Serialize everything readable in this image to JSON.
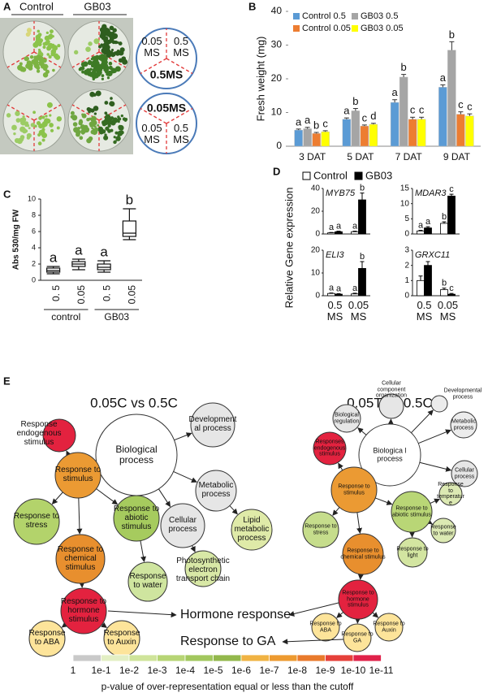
{
  "panel_labels": [
    "A",
    "B",
    "C",
    "D",
    "E"
  ],
  "photo_panel": {
    "labels": [
      "Control",
      "GB03"
    ],
    "circles": [
      {
        "labels": [
          "0.05 MS",
          "0.5 MS",
          "0.5MS"
        ]
      },
      {
        "labels": [
          "0.05MS",
          "0.05 MS",
          "0.5 MS"
        ]
      }
    ]
  },
  "chart_data": [
    {
      "type": "bar",
      "ylabel": "Fresh weight (mg)",
      "categories": [
        "3 DAT",
        "5 DAT",
        "7 DAT",
        "9 DAT"
      ],
      "ylim": [
        0,
        40
      ],
      "yticks": [
        0,
        10,
        20,
        30,
        40
      ],
      "legend": "upper-left",
      "series": [
        {
          "name": "Control 0.5",
          "color": "#5b9bd5",
          "values": [
            4.8,
            8,
            13,
            17.5
          ],
          "errors": [
            0.3,
            0.4,
            0.8,
            0.7
          ],
          "letters": [
            "a",
            "a",
            "a",
            "a"
          ]
        },
        {
          "name": "GB03 0.5",
          "color": "#a5a5a5",
          "values": [
            5.2,
            10.5,
            20.5,
            28.5
          ],
          "errors": [
            0.4,
            0.7,
            0.8,
            2.5
          ],
          "letters": [
            "a",
            "b",
            "b",
            "b"
          ]
        },
        {
          "name": "Control 0.05",
          "color": "#ed7d31",
          "values": [
            3.8,
            6,
            8,
            9.5
          ],
          "errors": [
            0.3,
            0.3,
            0.6,
            0.7
          ],
          "letters": [
            "b",
            "c",
            "c",
            "c"
          ]
        },
        {
          "name": "GB03 0.05",
          "color": "#ffff00",
          "values": [
            4.3,
            6.5,
            8,
            9
          ],
          "errors": [
            0.3,
            0.3,
            0.6,
            0.6
          ],
          "letters": [
            "c",
            "d",
            "c",
            "c"
          ]
        }
      ]
    },
    {
      "type": "box",
      "ylabel": "Abs 530/mg FW",
      "categories": [
        "0. 5",
        "0.05",
        "0. 5",
        "0.05"
      ],
      "groups": [
        "control",
        "GB03"
      ],
      "ylim": [
        0,
        10
      ],
      "yticks": [
        0,
        2,
        4,
        6,
        8,
        10
      ],
      "boxes": [
        {
          "min": 0.8,
          "q1": 1.0,
          "median": 1.2,
          "q3": 1.5,
          "max": 1.7
        },
        {
          "min": 1.3,
          "q1": 1.7,
          "median": 2.0,
          "q3": 2.3,
          "max": 2.6
        },
        {
          "min": 1.0,
          "q1": 1.3,
          "median": 1.6,
          "q3": 2.0,
          "max": 2.4
        },
        {
          "min": 5.0,
          "q1": 5.4,
          "median": 5.8,
          "q3": 7.3,
          "max": 8.8
        }
      ],
      "letters": [
        "a",
        "a",
        "a",
        "b"
      ]
    },
    {
      "type": "bar-panels",
      "ylabel": "Relative Gene expression",
      "categories": [
        "0.5 MS",
        "0.05 MS"
      ],
      "series": [
        {
          "name": "Control",
          "color": "#ffffff"
        },
        {
          "name": "GB03",
          "color": "#000000"
        }
      ],
      "panels": [
        {
          "title": "MYB75",
          "ylim": [
            0,
            40
          ],
          "yticks": [
            0,
            20,
            40
          ],
          "series": [
            {
              "values": [
                1,
                2
              ],
              "errors": [
                0.3,
                0.5
              ],
              "letters": [
                "a",
                "a"
              ]
            },
            {
              "values": [
                2,
                30
              ],
              "errors": [
                0.5,
                6
              ],
              "letters": [
                "a",
                "b"
              ]
            }
          ]
        },
        {
          "title": "MDAR3",
          "ylim": [
            0,
            15
          ],
          "yticks": [
            0,
            5,
            10,
            15
          ],
          "series": [
            {
              "values": [
                1,
                3.5
              ],
              "errors": [
                0.2,
                0.5
              ],
              "letters": [
                "a",
                "b"
              ]
            },
            {
              "values": [
                2,
                12.5
              ],
              "errors": [
                0.4,
                0.6
              ],
              "letters": [
                "a",
                "c"
              ]
            }
          ]
        },
        {
          "title": "ELI3",
          "ylim": [
            0,
            20
          ],
          "yticks": [
            0,
            10,
            20
          ],
          "series": [
            {
              "values": [
                1,
                0.8
              ],
              "errors": [
                0.2,
                0.3
              ],
              "letters": [
                "a",
                "a"
              ]
            },
            {
              "values": [
                0.7,
                12
              ],
              "errors": [
                0.2,
                3
              ],
              "letters": [
                "a",
                "b"
              ]
            }
          ]
        },
        {
          "title": "GRXC11",
          "ylim": [
            0,
            3
          ],
          "yticks": [
            0,
            1,
            2,
            3
          ],
          "series": [
            {
              "values": [
                1,
                0.4
              ],
              "errors": [
                0.3,
                0.1
              ],
              "letters": [
                null,
                "b"
              ]
            },
            {
              "values": [
                2,
                0.1
              ],
              "errors": [
                0.25,
                0.05
              ],
              "letters": [
                null,
                "c"
              ]
            }
          ]
        }
      ]
    }
  ],
  "networks": [
    {
      "title": "0.05C vs 0.5C",
      "nodes": [
        {
          "label": "Biological process",
          "color": "#ffffff"
        },
        {
          "label": "Developmental process",
          "color": "#e6e6e6"
        },
        {
          "label": "Metabolic process",
          "color": "#e6e6e6"
        },
        {
          "label": "Lipid metabolic process",
          "color": "#dfeaa8"
        },
        {
          "label": "Cellular process",
          "color": "#e6e6e6"
        },
        {
          "label": "Photosynthetic electron transport chain",
          "color": "#d8e8a6"
        },
        {
          "label": "Response endogenous stimulus",
          "color": "#e3223f"
        },
        {
          "label": "Response to stimulus",
          "color": "#eb9a33"
        },
        {
          "label": "Response to stress",
          "color": "#b3d36b"
        },
        {
          "label": "Response to abiotic stimulus",
          "color": "#a6cb5e"
        },
        {
          "label": "Response to chemical stimulus",
          "color": "#e88f2e"
        },
        {
          "label": "Response to water",
          "color": "#cfe59f"
        },
        {
          "label": "Response to hormone stimulus",
          "color": "#e3223f"
        },
        {
          "label": "Response to ABA",
          "color": "#fde49a"
        },
        {
          "label": "Response to Auxin",
          "color": "#fde49a"
        }
      ]
    },
    {
      "title": "0.05T vs 0.5C",
      "nodes": [
        {
          "label": "Biologica l process",
          "color": "#ffffff"
        },
        {
          "label": "Biological regulation",
          "color": "#e6e6e6"
        },
        {
          "label": "Cellular component organization",
          "color": "#e6e6e6"
        },
        {
          "label": "Developmental process",
          "color": "#ececec"
        },
        {
          "label": "Metabolic process",
          "color": "#ececec"
        },
        {
          "label": "Cellular process",
          "color": "#e6e6e6"
        },
        {
          "label": "Responses endogenous stimulus",
          "color": "#e3223f"
        },
        {
          "label": "Response to stimulus",
          "color": "#eb9a33"
        },
        {
          "label": "Response to stress",
          "color": "#c6dd8c"
        },
        {
          "label": "Response to abiotic stimulus",
          "color": "#b9d676"
        },
        {
          "label": "Response to temperature",
          "color": "#dce9b3"
        },
        {
          "label": "Response to chemical stimulus",
          "color": "#e88f2e"
        },
        {
          "label": "Response to water",
          "color": "#dce9b3"
        },
        {
          "label": "Response to light",
          "color": "#d3e5a1"
        },
        {
          "label": "Response to hormone stimulus",
          "color": "#e3223f"
        },
        {
          "label": "Response to ABA",
          "color": "#fde49a"
        },
        {
          "label": "Response to GA",
          "color": "#fde49a"
        },
        {
          "label": "Response to Auxin",
          "color": "#fde49a"
        }
      ]
    }
  ],
  "callouts": [
    "Hormone response",
    "Response to GA"
  ],
  "scale": {
    "colors": [
      "#c9c9c9",
      "#e3efc4",
      "#cfe49a",
      "#b7d575",
      "#a2c75e",
      "#93b84c",
      "#f0b343",
      "#ed9a30",
      "#e97a2c",
      "#e6403a",
      "#e0224a"
    ],
    "labels": [
      "1",
      "1e-1",
      "1e-2",
      "1e-3",
      "1e-4",
      "1e-5",
      "1e-6",
      "1e-7",
      "1e-8",
      "1e-9",
      "1e-10",
      "1e-11"
    ],
    "caption": "p-value of over-representation equal or less than the cutoff"
  }
}
